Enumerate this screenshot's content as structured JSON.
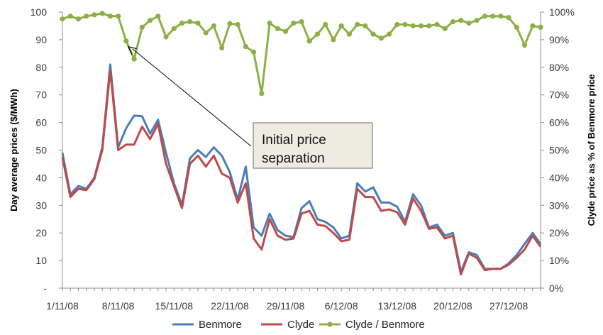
{
  "chart_data": {
    "type": "line",
    "title": "",
    "x": [
      "1/11/08",
      "2/11/08",
      "3/11/08",
      "4/11/08",
      "5/11/08",
      "6/11/08",
      "7/11/08",
      "8/11/08",
      "9/11/08",
      "10/11/08",
      "11/11/08",
      "12/11/08",
      "13/11/08",
      "14/11/08",
      "15/11/08",
      "16/11/08",
      "17/11/08",
      "18/11/08",
      "19/11/08",
      "20/11/08",
      "21/11/08",
      "22/11/08",
      "23/11/08",
      "24/11/08",
      "25/11/08",
      "26/11/08",
      "27/11/08",
      "28/11/08",
      "29/11/08",
      "30/11/08",
      "1/12/08",
      "2/12/08",
      "3/12/08",
      "4/12/08",
      "5/12/08",
      "6/12/08",
      "7/12/08",
      "8/12/08",
      "9/12/08",
      "10/12/08",
      "11/12/08",
      "12/12/08",
      "13/12/08",
      "14/12/08",
      "15/12/08",
      "16/12/08",
      "17/12/08",
      "18/12/08",
      "19/12/08",
      "20/12/08",
      "21/12/08",
      "22/12/08",
      "23/12/08",
      "24/12/08",
      "25/12/08",
      "26/12/08",
      "27/12/08",
      "28/12/08",
      "29/12/08",
      "30/12/08",
      "31/12/08"
    ],
    "x_tick_labels": [
      "1/11/08",
      "8/11/08",
      "15/11/08",
      "22/11/08",
      "29/11/08",
      "6/12/08",
      "13/12/08",
      "20/12/08",
      "27/12/08"
    ],
    "y_left": {
      "label": "Day average prices ($/MWh)",
      "ylim": [
        0,
        100
      ],
      "tick_labels": [
        "-",
        "10",
        "20",
        "30",
        "40",
        "50",
        "60",
        "70",
        "80",
        "90",
        "100"
      ]
    },
    "y_right": {
      "label": "Clyde price as % of Benmore price",
      "ylim": [
        0,
        100
      ],
      "tick_labels": [
        "0%",
        "10%",
        "20%",
        "30%",
        "40%",
        "50%",
        "60%",
        "70%",
        "80%",
        "90%",
        "100%"
      ]
    },
    "series": [
      {
        "name": "Benmore",
        "axis": "left",
        "color": "#4a7ebb",
        "values": [
          49,
          34,
          37,
          36,
          40,
          51,
          81,
          51,
          58,
          62.5,
          62.3,
          56,
          61,
          49,
          38,
          30,
          47,
          50,
          47.5,
          51,
          48,
          42,
          32,
          44,
          22,
          19,
          27,
          21,
          19,
          18.5,
          29,
          31.5,
          25,
          24,
          22,
          18,
          19,
          38,
          35,
          36.5,
          31,
          31,
          29.5,
          24,
          34,
          30,
          22,
          23,
          19,
          20,
          6,
          13,
          12,
          7,
          7,
          7,
          9,
          12,
          16,
          20,
          16
        ]
      },
      {
        "name": "Clyde",
        "axis": "left",
        "color": "#be4b48",
        "values": [
          47.5,
          33,
          36,
          35.5,
          39.5,
          50,
          79,
          50,
          52,
          52,
          58.5,
          54,
          59.5,
          45,
          37,
          29,
          45,
          48,
          44,
          48,
          41.5,
          40,
          31,
          38,
          18,
          14,
          25,
          19,
          17.5,
          18,
          27,
          28,
          23,
          22.5,
          20,
          17,
          17.5,
          36,
          33,
          33,
          28,
          28.5,
          27.5,
          23,
          32.5,
          28,
          21.5,
          22,
          18,
          19,
          5,
          12.5,
          11,
          6.5,
          7,
          7,
          8.5,
          11,
          14,
          19,
          15
        ]
      },
      {
        "name": "Clyde / Benmore",
        "axis": "right",
        "color": "#8db046",
        "values": [
          97.5,
          98.5,
          97.5,
          98.5,
          99,
          99.5,
          98.5,
          98.5,
          89.5,
          83,
          94.5,
          97,
          98.5,
          91,
          94,
          96,
          96.5,
          96,
          92.5,
          95,
          87,
          95.8,
          95.5,
          87.5,
          85.5,
          70.5,
          96,
          94,
          93,
          96,
          96.5,
          89.5,
          92,
          95.5,
          90,
          95,
          92,
          95.5,
          95,
          92,
          90.5,
          92,
          95.5,
          95.5,
          95,
          95,
          95,
          95.5,
          94,
          96.5,
          97,
          96,
          97,
          98.5,
          98.5,
          98.5,
          98,
          94.5,
          88,
          95,
          94.5
        ]
      }
    ],
    "annotation": {
      "lines": [
        "Initial price",
        "separation"
      ],
      "points_to": "9/11/08"
    },
    "legend_position": "bottom",
    "grid": false
  }
}
